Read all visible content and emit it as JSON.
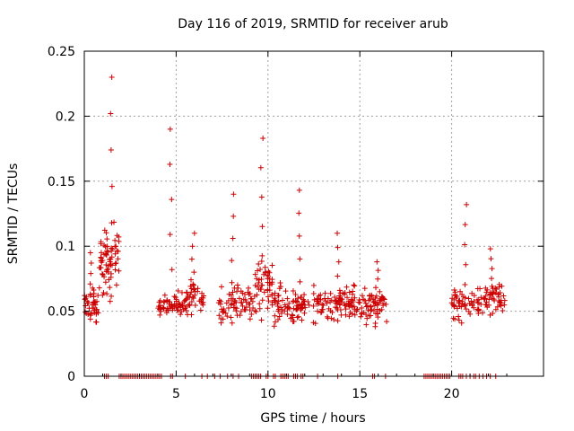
{
  "chart_data": {
    "type": "scatter",
    "title": "Day 116 of 2019, SRMTID for receiver arub",
    "xlabel": "GPS time / hours",
    "ylabel": "SRMTID / TECUs",
    "xlim": [
      0,
      25
    ],
    "ylim": [
      0,
      0.25
    ],
    "xticks": [
      0,
      5,
      10,
      15,
      20
    ],
    "xtick_labels": [
      "0",
      "5",
      "10",
      "15",
      "20"
    ],
    "yticks": [
      0,
      0.05,
      0.1,
      0.15,
      0.2,
      0.25
    ],
    "ytick_labels": [
      "0",
      "0.05",
      "0.1",
      "0.15",
      "0.2",
      "0.25"
    ],
    "grid": true,
    "marker": "plus",
    "color": "#cc0000",
    "segments": [
      {
        "t0": 0.0,
        "t1": 0.8,
        "base": 0.055,
        "spread": 0.02,
        "peak": 0.095,
        "n": 40
      },
      {
        "t0": 0.8,
        "t1": 1.9,
        "base": 0.09,
        "spread": 0.04,
        "peak": 0.23,
        "n": 70
      },
      {
        "t0": 4.0,
        "t1": 5.5,
        "base": 0.055,
        "spread": 0.015,
        "peak": 0.19,
        "n": 55
      },
      {
        "t0": 5.5,
        "t1": 6.5,
        "base": 0.06,
        "spread": 0.02,
        "peak": 0.11,
        "n": 40
      },
      {
        "t0": 7.3,
        "t1": 9.3,
        "base": 0.055,
        "spread": 0.02,
        "peak": 0.14,
        "n": 70
      },
      {
        "t0": 9.3,
        "t1": 10.3,
        "base": 0.07,
        "spread": 0.03,
        "peak": 0.183,
        "n": 50
      },
      {
        "t0": 10.3,
        "t1": 12.3,
        "base": 0.055,
        "spread": 0.02,
        "peak": 0.143,
        "n": 80
      },
      {
        "t0": 12.3,
        "t1": 15.0,
        "base": 0.055,
        "spread": 0.02,
        "peak": 0.11,
        "n": 100
      },
      {
        "t0": 15.0,
        "t1": 16.5,
        "base": 0.055,
        "spread": 0.02,
        "peak": 0.088,
        "n": 60
      },
      {
        "t0": 20.0,
        "t1": 21.2,
        "base": 0.055,
        "spread": 0.02,
        "peak": 0.132,
        "n": 45
      },
      {
        "t0": 21.2,
        "t1": 22.9,
        "base": 0.06,
        "spread": 0.02,
        "peak": 0.098,
        "n": 65
      }
    ],
    "zero_points": [
      1.1,
      1.2,
      1.3,
      1.9,
      2.0,
      2.1,
      2.2,
      2.3,
      2.4,
      2.5,
      2.6,
      2.7,
      2.8,
      2.9,
      3.0,
      3.1,
      3.2,
      3.3,
      3.4,
      3.5,
      3.6,
      3.7,
      3.8,
      3.9,
      4.0,
      4.1,
      4.2,
      4.7,
      4.8,
      5.5,
      6.4,
      6.7,
      7.1,
      7.4,
      7.8,
      8.1,
      8.4,
      9.1,
      9.2,
      9.3,
      9.4,
      9.5,
      9.6,
      9.9,
      10.0,
      10.3,
      10.4,
      10.7,
      10.8,
      10.9,
      11.0,
      11.1,
      11.4,
      11.5,
      11.6,
      11.8,
      11.9,
      12.7,
      13.8,
      15.7,
      15.8,
      16.4,
      18.5,
      18.6,
      18.7,
      18.8,
      18.9,
      19.0,
      19.1,
      19.2,
      19.3,
      19.4,
      19.5,
      19.6,
      19.7,
      19.8,
      19.9,
      20.4,
      20.5,
      20.6,
      20.8,
      21.0,
      21.2,
      21.3,
      21.5,
      21.7,
      21.9,
      22.1,
      22.4
    ]
  }
}
